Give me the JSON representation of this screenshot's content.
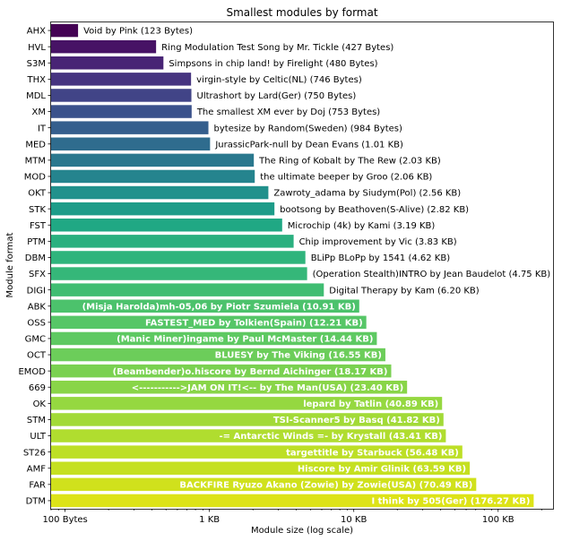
{
  "chart_data": {
    "type": "bar",
    "orientation": "horizontal",
    "title": "Smallest modules by format",
    "xlabel": "Module size (log scale)",
    "ylabel": "Module format",
    "xscale": "log",
    "xlim": [
      80,
      240000
    ],
    "xticks": [
      {
        "value": 100,
        "label": "100 Bytes"
      },
      {
        "value": 1000,
        "label": "1 KB"
      },
      {
        "value": 10000,
        "label": "10 KB"
      },
      {
        "value": 100000,
        "label": "100 KB"
      }
    ],
    "grid": false,
    "legend": "none",
    "palette": "viridis",
    "categories": [
      "AHX",
      "HVL",
      "S3M",
      "THX",
      "MDL",
      "XM",
      "IT",
      "MED",
      "MTM",
      "MOD",
      "OKT",
      "STK",
      "FST",
      "PTM",
      "DBM",
      "SFX",
      "DIGI",
      "ABK",
      "OSS",
      "GMC",
      "OCT",
      "EMOD",
      "669",
      "OK",
      "STM",
      "ULT",
      "ST26",
      "AMF",
      "FAR",
      "DTM"
    ],
    "values": [
      123,
      427,
      480,
      746,
      750,
      753,
      984,
      1010,
      2030,
      2060,
      2560,
      2820,
      3190,
      3830,
      4620,
      4750,
      6200,
      10910,
      12210,
      14440,
      16550,
      18170,
      23400,
      40890,
      41820,
      43410,
      56480,
      63590,
      70490,
      176270
    ],
    "labels": [
      "Void by Pink (123 Bytes)",
      "Ring Modulation Test Song by Mr. Tickle (427 Bytes)",
      "Simpsons in chip land! by Firelight (480 Bytes)",
      "virgin-style by Celtic(NL) (746 Bytes)",
      "Ultrashort by Lard(Ger) (750 Bytes)",
      "The smallest XM ever by Doj (753 Bytes)",
      "bytesize by Random(Sweden) (984 Bytes)",
      "JurassicPark-null by Dean Evans (1.01 KB)",
      "The Ring of Kobalt by The Rew (2.03 KB)",
      "the ultimate beeper by Groo (2.06 KB)",
      "Zawroty_adama by Siudym(Pol) (2.56 KB)",
      "bootsong by Beathoven(S-Alive) (2.82 KB)",
      "Microchip (4k) by Kami (3.19 KB)",
      "Chip improvement by Vic (3.83 KB)",
      "BLiPp BLoPp by 1541 (4.62 KB)",
      "(Operation Stealth)INTRO by Jean Baudelot (4.75 KB)",
      "Digital Therapy by Kam (6.20 KB)",
      "(Misja Harolda)mh-05,06 by Piotr Szumiela (10.91 KB)",
      "FASTEST_MED by Tolkien(Spain) (12.21 KB)",
      "(Manic Miner)ingame by Paul McMaster (14.44 KB)",
      "BLUESY by The Viking (16.55 KB)",
      "(Beambender)o.hiscore by Bernd Aichinger (18.17 KB)",
      "<----------->JAM ON IT!<-- by The Man(USA) (23.40 KB)",
      "lepard by Tatlin (40.89 KB)",
      "TSI-Scanner5 by Basq (41.82 KB)",
      "-= Antarctic Winds =- by Krystall (43.41 KB)",
      "targettitle by Starbuck (56.48 KB)",
      "Hiscore by Amir Glinik (63.59 KB)",
      "BACKFIRE   Ryuzo Akano (Zowie) by Zowie(USA) (70.49 KB)",
      "I think by 505(Ger) (176.27 KB)"
    ],
    "colors": [
      "#440154",
      "#471365",
      "#482475",
      "#463480",
      "#414487",
      "#3b528b",
      "#355f8d",
      "#2f6c8e",
      "#2a788e",
      "#25848e",
      "#21918c",
      "#1e9c89",
      "#20a884",
      "#2ab07f",
      "#2fb47c",
      "#35b779",
      "#40bd72",
      "#4cc26c",
      "#56c667",
      "#5ec962",
      "#6ccd5a",
      "#7ad151",
      "#89d548",
      "#95d840",
      "#a2da37",
      "#b0dd2f",
      "#bddf26",
      "#c5e021",
      "#d0e11c",
      "#dde318"
    ],
    "label_placement": "outside bar for sizes below 10 KB, inside bar (bold white, right-aligned) for 10 KB and above"
  }
}
